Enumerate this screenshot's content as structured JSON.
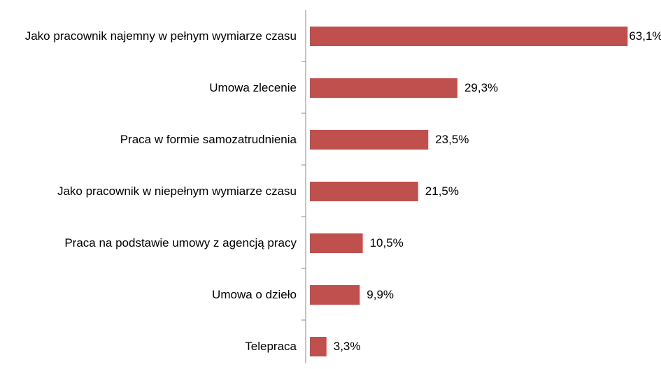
{
  "chart_data": {
    "type": "bar",
    "orientation": "horizontal",
    "categories": [
      "Jako pracownik najemny w pełnym wymiarze czasu",
      "Umowa zlecenie",
      "Praca w formie samozatrudnienia",
      "Jako pracownik w niepełnym wymiarze czasu",
      "Praca na podstawie umowy z agencją pracy",
      "Umowa o dzieło",
      "Telepraca"
    ],
    "values": [
      63.1,
      29.3,
      23.5,
      21.5,
      10.5,
      9.9,
      3.3
    ],
    "value_labels": [
      "63,1%",
      "29,3%",
      "23,5%",
      "21,5%",
      "10,5%",
      "9,9%",
      "3,3%"
    ],
    "color": "#c0504d"
  }
}
